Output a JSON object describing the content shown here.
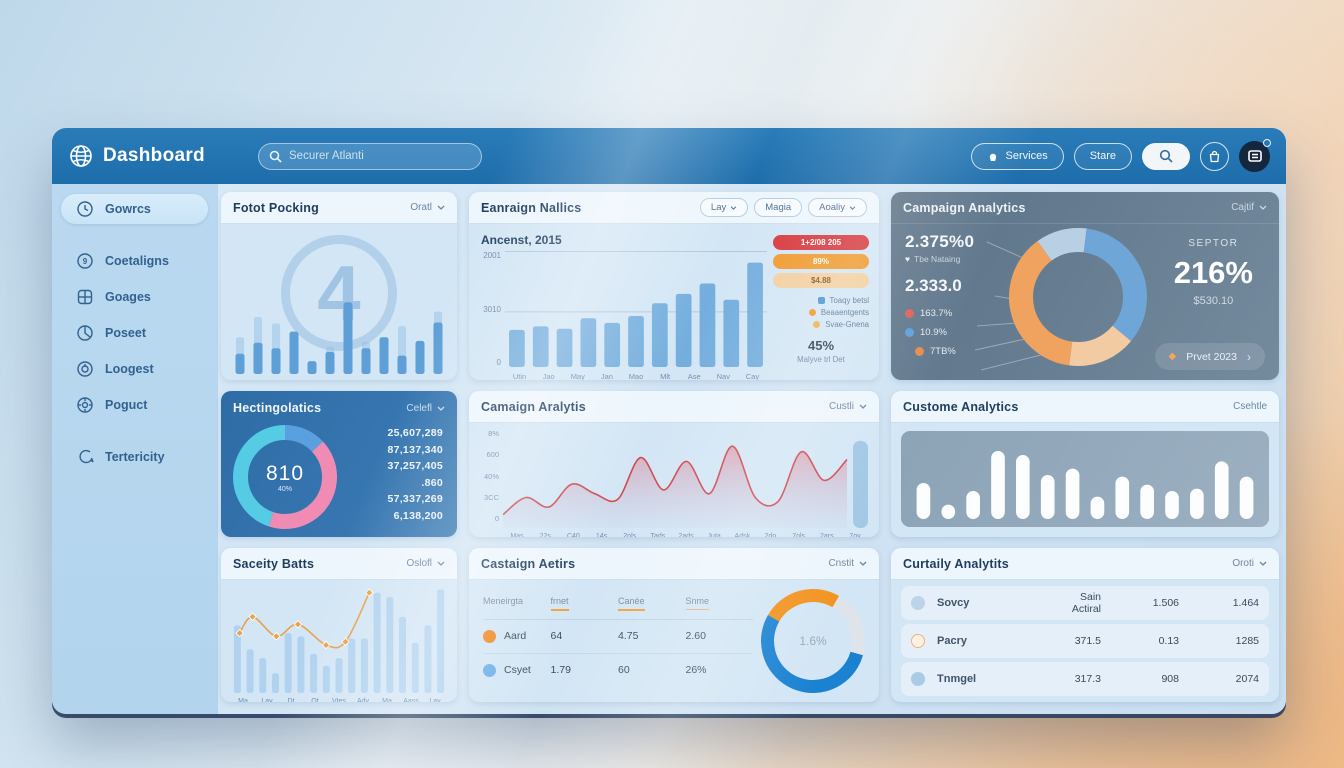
{
  "palette": {
    "header_blue": "#1d6dab",
    "bar_blue": "#74aedd",
    "line_red": "#cf4a4f",
    "orange": "#f09a2e",
    "badge_red": "#d6393f",
    "badge_tan": "#f3cfa0"
  },
  "header": {
    "title": "Dashboard",
    "search_placeholder": "Securer Atlanti",
    "services_label": "Services",
    "share_label": "Stare"
  },
  "sidebar": {
    "items": [
      {
        "label": "Gowrcs"
      },
      {
        "label": "Coetaligns"
      },
      {
        "label": "Goages"
      },
      {
        "label": "Poseet"
      },
      {
        "label": "Loogest"
      },
      {
        "label": "Poguct"
      },
      {
        "label": "Tertericity"
      }
    ]
  },
  "cards": {
    "c1": {
      "title": "Fotot Pocking",
      "dropdown": "Oratl",
      "watermark": "4",
      "chart": {
        "type": "bar",
        "ghost": [
          40,
          62,
          55,
          0,
          0,
          30,
          0,
          35,
          0,
          52,
          0,
          68
        ],
        "values": [
          22,
          34,
          28,
          46,
          14,
          24,
          78,
          28,
          40,
          20,
          36,
          56
        ]
      }
    },
    "c2": {
      "title": "Eanraign Nallics",
      "buttons": [
        "Lay",
        "Magia",
        "Aoaliy"
      ],
      "subtitle": "Ancenst, 2015",
      "chart": {
        "type": "bar",
        "values": [
          32,
          35,
          33,
          42,
          38,
          44,
          55,
          63,
          72,
          58,
          90
        ],
        "x_labels": [
          "Utin",
          "Jao",
          "May",
          "Jan",
          "Mao",
          "Mlt",
          "Ase",
          "Nav",
          "Cay"
        ],
        "y_labels": [
          "2001",
          "3010",
          "0"
        ]
      },
      "badges": [
        {
          "label": "1+2/08 205",
          "color": "#d6393f"
        },
        {
          "label": "89%",
          "color": "#f09a2e"
        },
        {
          "label": "$4.88",
          "color": "#f3cfa0"
        }
      ],
      "legend": [
        {
          "label": "Toaqy betsl",
          "color": "#4d94d0"
        },
        {
          "label": "Beaaentgents",
          "color": "#f09a2e"
        },
        {
          "label": "Svae-Gnena",
          "color": "#f0b04e"
        }
      ],
      "stat_value": "45%",
      "stat_caption": "Malyve trl Det"
    },
    "c3": {
      "title": "Campaign Analytics",
      "dropdown": "Cajtif",
      "stat1_value": "2.375%0",
      "stat1_caption": "Tbe Nataing",
      "stat2_value": "2.333.0",
      "stat3_value": "163.7%",
      "stat4_value": "10.9%",
      "stat5_value": "7TB%",
      "sector_label": "SEPTOR",
      "sector_value": "216%",
      "sector_sub": "$530.10",
      "button_label": "Prvet 2023",
      "chart": {
        "type": "pie",
        "segments": [
          {
            "label": "light-blue",
            "color": "#b9cfe4",
            "frac": 0.12
          },
          {
            "label": "blue",
            "color": "#6ea6d8",
            "frac": 0.34
          },
          {
            "label": "light-orange",
            "color": "#f3cba2",
            "frac": 0.16
          },
          {
            "label": "orange",
            "color": "#efa35e",
            "frac": 0.38
          }
        ],
        "rotate": -126
      }
    },
    "c4": {
      "title": "Hectingolatics",
      "dropdown": "Celefl",
      "center_value": "810",
      "center_sub": "40%",
      "figures": [
        "25,607,289",
        "87,137,340",
        "37,257,405",
        ".860",
        "57,337,269",
        "6,138,200"
      ],
      "chart": {
        "type": "pie",
        "segments": [
          {
            "label": "blue",
            "color": "#5a9fe0",
            "frac": 0.13
          },
          {
            "label": "pink",
            "color": "#f08cb4",
            "frac": 0.42
          },
          {
            "label": "cyan",
            "color": "#55cbe4",
            "frac": 0.45
          }
        ],
        "rotate": -90
      }
    },
    "c5": {
      "title": "Camaign Aralytis",
      "dropdown": "Custli",
      "chart": {
        "type": "line",
        "points": [
          12,
          30,
          20,
          44,
          34,
          28,
          72,
          38,
          68,
          34,
          84,
          30,
          26,
          78,
          48,
          70
        ],
        "x_labels": [
          "Mas",
          "22s",
          "C40",
          "14s",
          "2ols",
          "Tads",
          "2ads",
          "Juta",
          "Adsk",
          "2do",
          "7ols",
          "2ars",
          "7oy"
        ],
        "y_labels": [
          "8%",
          "600",
          "40%",
          "3CC",
          "0"
        ],
        "highlight_bar": 88
      }
    },
    "c6": {
      "title": "Custome Analytics",
      "dropdown": "Csehtle",
      "chart": {
        "type": "bar",
        "values": [
          45,
          18,
          35,
          85,
          80,
          55,
          63,
          28,
          53,
          43,
          35,
          38,
          72,
          53
        ]
      }
    },
    "c7": {
      "title": "Saceity Batts",
      "dropdown": "Oslofl",
      "chart": {
        "type": "bar",
        "values": [
          62,
          40,
          32,
          18,
          55,
          52,
          36,
          25,
          32,
          50,
          50,
          92,
          88,
          70,
          46,
          62,
          95
        ],
        "line_points": [
          [
            0.04,
            55
          ],
          [
            0.1,
            70
          ],
          [
            0.21,
            52
          ],
          [
            0.31,
            63
          ],
          [
            0.44,
            44
          ],
          [
            0.53,
            47
          ],
          [
            0.64,
            92
          ]
        ],
        "x_labels": [
          "Ma",
          "Lay",
          "Dt",
          "Qt",
          "Vtes",
          "Ady",
          "Ma",
          "Aass",
          "Lay"
        ]
      }
    },
    "c8": {
      "title": "Castaign Aetirs",
      "dropdown": "Cnstit",
      "table": {
        "headers": [
          "Meneirgta",
          "frnet",
          "Canée",
          "Snme"
        ],
        "rows": [
          {
            "dot": "#f08a24",
            "label": "Aard",
            "values": [
              "64",
              "4.75",
              "2.60"
            ]
          },
          {
            "dot": "#6cb0e8",
            "label": "Csyet",
            "values": [
              "1.79",
              "60",
              "26%"
            ]
          }
        ]
      },
      "donut_center": "1.6%",
      "chart": {
        "type": "pie",
        "segments": [
          {
            "label": "orange",
            "color": "#f2921e",
            "frac": 0.25
          },
          {
            "label": "gray",
            "color": "#dfe4ea",
            "frac": 0.21
          },
          {
            "label": "blue",
            "color": "#1b82d2",
            "frac": 0.54
          }
        ],
        "rotate": -150
      }
    },
    "c9": {
      "title": "Curtaily Analytits",
      "dropdown": "Oroti",
      "rows": [
        {
          "icon_color": "#bcd4e8",
          "label": "Sovcy",
          "values": [
            "Sain Actiral",
            "1.506",
            "1.464"
          ]
        },
        {
          "icon_color": "#f5dfc4",
          "label": "Pacry",
          "values": [
            "371.5",
            "0.13",
            "1285"
          ]
        },
        {
          "icon_color": "#a9cbe6",
          "label": "Tnmgel",
          "values": [
            "317.3",
            "908",
            "2074"
          ]
        }
      ]
    }
  }
}
